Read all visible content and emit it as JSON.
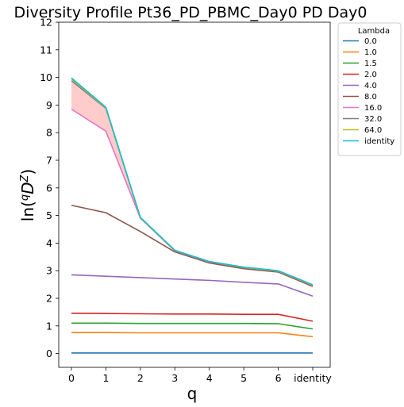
{
  "chart_data": {
    "type": "line",
    "title": "Diversity Profile Pt36_PD_PBMC_Day0 PD Day0",
    "xlabel": "q",
    "ylabel": "ln(qDZ)",
    "categories": [
      "0",
      "1",
      "2",
      "3",
      "4",
      "5",
      "6",
      "identity"
    ],
    "ylim": [
      -0.5,
      12
    ],
    "yticks": [
      0,
      1,
      2,
      3,
      4,
      5,
      6,
      7,
      8,
      9,
      10,
      11,
      12
    ],
    "grid": false,
    "legend": {
      "title": "Lambda",
      "placement": "outside upper right"
    },
    "series": [
      {
        "name": "0.0",
        "color": "#1f77b4",
        "values": [
          0.02,
          0.02,
          0.02,
          0.02,
          0.02,
          0.02,
          0.02,
          0.02
        ]
      },
      {
        "name": "1.0",
        "color": "#ff7f0e",
        "values": [
          0.76,
          0.76,
          0.75,
          0.75,
          0.75,
          0.75,
          0.75,
          0.61
        ]
      },
      {
        "name": "1.5",
        "color": "#2ca02c",
        "values": [
          1.1,
          1.1,
          1.09,
          1.09,
          1.09,
          1.09,
          1.08,
          0.89
        ]
      },
      {
        "name": "2.0",
        "color": "#d62728",
        "values": [
          1.46,
          1.45,
          1.44,
          1.43,
          1.43,
          1.42,
          1.42,
          1.17
        ]
      },
      {
        "name": "4.0",
        "color": "#9467bd",
        "values": [
          2.85,
          2.8,
          2.75,
          2.7,
          2.65,
          2.58,
          2.52,
          2.08
        ]
      },
      {
        "name": "8.0",
        "color": "#8c564b",
        "values": [
          5.37,
          5.1,
          4.42,
          3.68,
          3.28,
          3.07,
          2.95,
          2.43
        ]
      },
      {
        "name": "16.0",
        "color": "#e377c2",
        "values": [
          8.85,
          8.05,
          4.9,
          3.72,
          3.32,
          3.12,
          2.98,
          2.47
        ]
      },
      {
        "name": "32.0",
        "color": "#7f7f7f",
        "values": [
          9.88,
          8.88,
          4.92,
          3.73,
          3.33,
          3.12,
          2.99,
          2.48
        ]
      },
      {
        "name": "64.0",
        "color": "#bcbd22",
        "values": [
          9.95,
          8.9,
          4.92,
          3.74,
          3.33,
          3.12,
          2.99,
          2.48
        ]
      },
      {
        "name": "identity",
        "color": "#17becf",
        "values": [
          9.98,
          8.92,
          4.93,
          3.74,
          3.33,
          3.13,
          3.0,
          2.49
        ]
      }
    ],
    "shaded_band": {
      "color": "#ff9999",
      "x": [
        "0",
        "1",
        "2"
      ],
      "lower": [
        8.85,
        8.05,
        4.9
      ],
      "upper": [
        9.98,
        8.92,
        4.93
      ]
    }
  }
}
